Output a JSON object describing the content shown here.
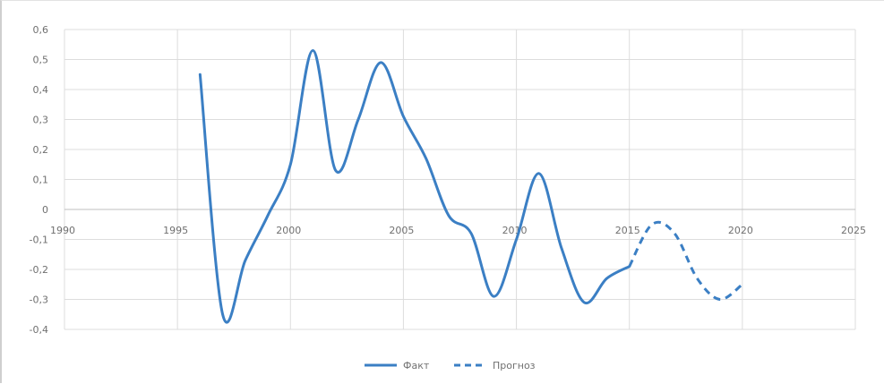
{
  "chart_data": {
    "type": "line",
    "title": "",
    "xlabel": "",
    "ylabel": "",
    "xlim": [
      1990,
      2025
    ],
    "ylim": [
      -0.4,
      0.6
    ],
    "grid": true,
    "legend_position": "bottom",
    "x_ticks": [
      "1990",
      "1995",
      "2000",
      "2005",
      "2010",
      "2015",
      "2020",
      "2025"
    ],
    "y_ticks": [
      "-0,4",
      "-0,3",
      "-0,2",
      "-0,1",
      "0",
      "0,1",
      "0,2",
      "0,3",
      "0,4",
      "0,5",
      "0,6"
    ],
    "series": [
      {
        "name": "Факт",
        "color": "#3b7fc4",
        "style": "solid",
        "x": [
          1996,
          1997,
          1998,
          1999,
          2000,
          2001,
          2002,
          2003,
          2004,
          2005,
          2006,
          2007,
          2008,
          2009,
          2010,
          2011,
          2012,
          2013,
          2014,
          2015
        ],
        "y": [
          0.45,
          -0.35,
          -0.17,
          -0.02,
          0.15,
          0.53,
          0.13,
          0.3,
          0.49,
          0.31,
          0.17,
          -0.02,
          -0.08,
          -0.29,
          -0.1,
          0.12,
          -0.13,
          -0.31,
          -0.23,
          -0.19
        ]
      },
      {
        "name": "Прогноз",
        "color": "#3b7fc4",
        "style": "dashed",
        "x": [
          2015,
          2016,
          2017,
          2018,
          2019,
          2020
        ],
        "y": [
          -0.19,
          -0.05,
          -0.08,
          -0.23,
          -0.3,
          -0.25
        ]
      }
    ]
  }
}
